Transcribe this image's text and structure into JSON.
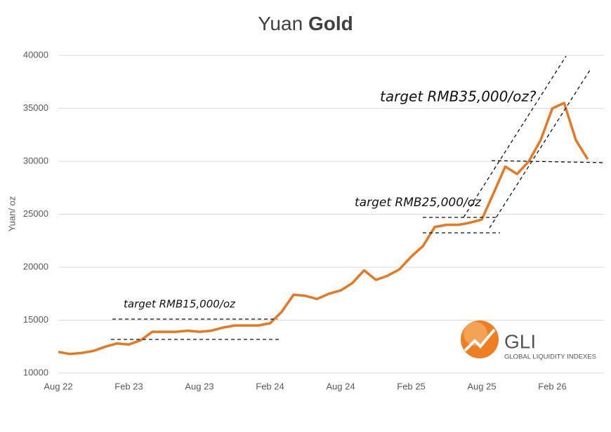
{
  "chart_data": {
    "type": "line",
    "title": [
      "Yuan",
      "Gold"
    ],
    "y_label": "Yuan/ oz",
    "categories": [
      "Aug 22",
      null,
      null,
      null,
      null,
      null,
      "Feb 23",
      null,
      null,
      null,
      null,
      null,
      "Aug 23",
      null,
      null,
      null,
      null,
      null,
      "Feb 24",
      null,
      null,
      null,
      null,
      null,
      "Aug 24",
      null,
      null,
      null,
      null,
      null,
      "Feb 25",
      null,
      null,
      null,
      null,
      null,
      "Aug 25",
      null,
      null,
      null,
      null,
      null,
      "Feb 26",
      null,
      null,
      null
    ],
    "series": [
      {
        "name": "Yuan Gold",
        "color": "#e87722",
        "values": [
          12000,
          11800,
          11900,
          12100,
          12500,
          12800,
          12700,
          13100,
          13900,
          13900,
          13900,
          14000,
          13900,
          14000,
          14300,
          14500,
          14500,
          14500,
          14700,
          15800,
          17400,
          17300,
          17000,
          17500,
          17800,
          18500,
          19700,
          18800,
          19200,
          19800,
          21000,
          22000,
          23800,
          24000,
          24000,
          24200,
          24500,
          27000,
          29500,
          28800,
          30000,
          32000,
          35000,
          35500,
          32000,
          30200
        ]
      }
    ],
    "ylim": [
      10000,
      40000
    ],
    "yticks": [
      10000,
      15000,
      20000,
      25000,
      30000,
      35000,
      40000
    ],
    "grid": true,
    "annotations": [
      "target RMB15,000/oz",
      "target RMB25,000/oz",
      "target RMB35,000/oz?"
    ],
    "logo": {
      "name": "GLI",
      "tagline": "GLOBAL LIQUIDITY INDEXES"
    }
  }
}
